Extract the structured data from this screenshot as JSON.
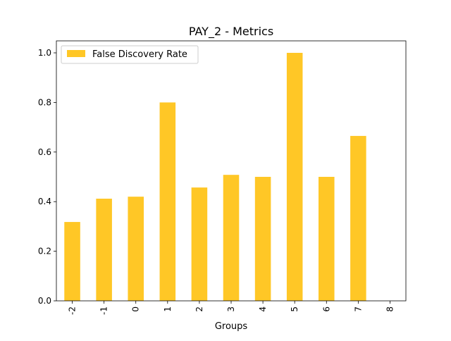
{
  "chart_data": {
    "type": "bar",
    "title": "PAY_2 - Metrics",
    "xlabel": "Groups",
    "ylabel": "",
    "categories": [
      "-2",
      "-1",
      "0",
      "1",
      "2",
      "3",
      "4",
      "5",
      "6",
      "7",
      "8"
    ],
    "series": [
      {
        "name": "False Discovery Rate",
        "color": "#ffc726",
        "values": [
          0.318,
          0.412,
          0.42,
          0.8,
          0.457,
          0.508,
          0.5,
          1.0,
          0.5,
          0.665,
          0.0
        ]
      }
    ],
    "ylim": [
      0,
      1.05
    ],
    "yticks": [
      "0.0",
      "0.2",
      "0.4",
      "0.6",
      "0.8",
      "1.0"
    ],
    "grid": false,
    "legend_position": "top-left"
  }
}
